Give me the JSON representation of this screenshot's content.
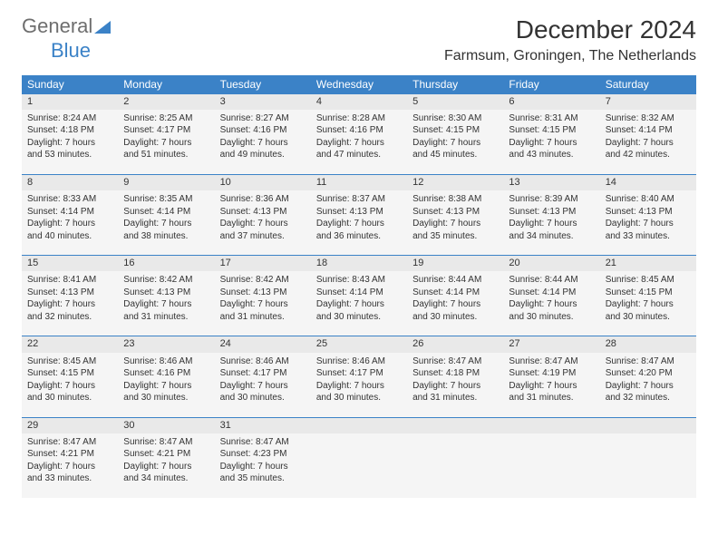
{
  "brand": {
    "word1": "General",
    "word2": "Blue",
    "word1_color": "#6e6e6e",
    "word2_color": "#3b82c7",
    "triangle_color": "#3b82c7"
  },
  "title": "December 2024",
  "location": "Farmsum, Groningen, The Netherlands",
  "weekdays": [
    "Sunday",
    "Monday",
    "Tuesday",
    "Wednesday",
    "Thursday",
    "Friday",
    "Saturday"
  ],
  "header_bg": "#3b82c7",
  "header_fg": "#ffffff",
  "daynum_bg": "#e9e9e9",
  "cell_bg": "#f5f5f5",
  "rule_color": "#3b82c7",
  "text_color": "#333333",
  "font_family": "Arial, Helvetica, sans-serif",
  "title_fontsize": 28,
  "location_fontsize": 16,
  "weekday_fontsize": 12,
  "daynum_fontsize": 11,
  "cell_fontsize": 10,
  "weeks": [
    [
      {
        "n": "1",
        "sunrise": "Sunrise: 8:24 AM",
        "sunset": "Sunset: 4:18 PM",
        "day1": "Daylight: 7 hours",
        "day2": "and 53 minutes."
      },
      {
        "n": "2",
        "sunrise": "Sunrise: 8:25 AM",
        "sunset": "Sunset: 4:17 PM",
        "day1": "Daylight: 7 hours",
        "day2": "and 51 minutes."
      },
      {
        "n": "3",
        "sunrise": "Sunrise: 8:27 AM",
        "sunset": "Sunset: 4:16 PM",
        "day1": "Daylight: 7 hours",
        "day2": "and 49 minutes."
      },
      {
        "n": "4",
        "sunrise": "Sunrise: 8:28 AM",
        "sunset": "Sunset: 4:16 PM",
        "day1": "Daylight: 7 hours",
        "day2": "and 47 minutes."
      },
      {
        "n": "5",
        "sunrise": "Sunrise: 8:30 AM",
        "sunset": "Sunset: 4:15 PM",
        "day1": "Daylight: 7 hours",
        "day2": "and 45 minutes."
      },
      {
        "n": "6",
        "sunrise": "Sunrise: 8:31 AM",
        "sunset": "Sunset: 4:15 PM",
        "day1": "Daylight: 7 hours",
        "day2": "and 43 minutes."
      },
      {
        "n": "7",
        "sunrise": "Sunrise: 8:32 AM",
        "sunset": "Sunset: 4:14 PM",
        "day1": "Daylight: 7 hours",
        "day2": "and 42 minutes."
      }
    ],
    [
      {
        "n": "8",
        "sunrise": "Sunrise: 8:33 AM",
        "sunset": "Sunset: 4:14 PM",
        "day1": "Daylight: 7 hours",
        "day2": "and 40 minutes."
      },
      {
        "n": "9",
        "sunrise": "Sunrise: 8:35 AM",
        "sunset": "Sunset: 4:14 PM",
        "day1": "Daylight: 7 hours",
        "day2": "and 38 minutes."
      },
      {
        "n": "10",
        "sunrise": "Sunrise: 8:36 AM",
        "sunset": "Sunset: 4:13 PM",
        "day1": "Daylight: 7 hours",
        "day2": "and 37 minutes."
      },
      {
        "n": "11",
        "sunrise": "Sunrise: 8:37 AM",
        "sunset": "Sunset: 4:13 PM",
        "day1": "Daylight: 7 hours",
        "day2": "and 36 minutes."
      },
      {
        "n": "12",
        "sunrise": "Sunrise: 8:38 AM",
        "sunset": "Sunset: 4:13 PM",
        "day1": "Daylight: 7 hours",
        "day2": "and 35 minutes."
      },
      {
        "n": "13",
        "sunrise": "Sunrise: 8:39 AM",
        "sunset": "Sunset: 4:13 PM",
        "day1": "Daylight: 7 hours",
        "day2": "and 34 minutes."
      },
      {
        "n": "14",
        "sunrise": "Sunrise: 8:40 AM",
        "sunset": "Sunset: 4:13 PM",
        "day1": "Daylight: 7 hours",
        "day2": "and 33 minutes."
      }
    ],
    [
      {
        "n": "15",
        "sunrise": "Sunrise: 8:41 AM",
        "sunset": "Sunset: 4:13 PM",
        "day1": "Daylight: 7 hours",
        "day2": "and 32 minutes."
      },
      {
        "n": "16",
        "sunrise": "Sunrise: 8:42 AM",
        "sunset": "Sunset: 4:13 PM",
        "day1": "Daylight: 7 hours",
        "day2": "and 31 minutes."
      },
      {
        "n": "17",
        "sunrise": "Sunrise: 8:42 AM",
        "sunset": "Sunset: 4:13 PM",
        "day1": "Daylight: 7 hours",
        "day2": "and 31 minutes."
      },
      {
        "n": "18",
        "sunrise": "Sunrise: 8:43 AM",
        "sunset": "Sunset: 4:14 PM",
        "day1": "Daylight: 7 hours",
        "day2": "and 30 minutes."
      },
      {
        "n": "19",
        "sunrise": "Sunrise: 8:44 AM",
        "sunset": "Sunset: 4:14 PM",
        "day1": "Daylight: 7 hours",
        "day2": "and 30 minutes."
      },
      {
        "n": "20",
        "sunrise": "Sunrise: 8:44 AM",
        "sunset": "Sunset: 4:14 PM",
        "day1": "Daylight: 7 hours",
        "day2": "and 30 minutes."
      },
      {
        "n": "21",
        "sunrise": "Sunrise: 8:45 AM",
        "sunset": "Sunset: 4:15 PM",
        "day1": "Daylight: 7 hours",
        "day2": "and 30 minutes."
      }
    ],
    [
      {
        "n": "22",
        "sunrise": "Sunrise: 8:45 AM",
        "sunset": "Sunset: 4:15 PM",
        "day1": "Daylight: 7 hours",
        "day2": "and 30 minutes."
      },
      {
        "n": "23",
        "sunrise": "Sunrise: 8:46 AM",
        "sunset": "Sunset: 4:16 PM",
        "day1": "Daylight: 7 hours",
        "day2": "and 30 minutes."
      },
      {
        "n": "24",
        "sunrise": "Sunrise: 8:46 AM",
        "sunset": "Sunset: 4:17 PM",
        "day1": "Daylight: 7 hours",
        "day2": "and 30 minutes."
      },
      {
        "n": "25",
        "sunrise": "Sunrise: 8:46 AM",
        "sunset": "Sunset: 4:17 PM",
        "day1": "Daylight: 7 hours",
        "day2": "and 30 minutes."
      },
      {
        "n": "26",
        "sunrise": "Sunrise: 8:47 AM",
        "sunset": "Sunset: 4:18 PM",
        "day1": "Daylight: 7 hours",
        "day2": "and 31 minutes."
      },
      {
        "n": "27",
        "sunrise": "Sunrise: 8:47 AM",
        "sunset": "Sunset: 4:19 PM",
        "day1": "Daylight: 7 hours",
        "day2": "and 31 minutes."
      },
      {
        "n": "28",
        "sunrise": "Sunrise: 8:47 AM",
        "sunset": "Sunset: 4:20 PM",
        "day1": "Daylight: 7 hours",
        "day2": "and 32 minutes."
      }
    ],
    [
      {
        "n": "29",
        "sunrise": "Sunrise: 8:47 AM",
        "sunset": "Sunset: 4:21 PM",
        "day1": "Daylight: 7 hours",
        "day2": "and 33 minutes."
      },
      {
        "n": "30",
        "sunrise": "Sunrise: 8:47 AM",
        "sunset": "Sunset: 4:21 PM",
        "day1": "Daylight: 7 hours",
        "day2": "and 34 minutes."
      },
      {
        "n": "31",
        "sunrise": "Sunrise: 8:47 AM",
        "sunset": "Sunset: 4:23 PM",
        "day1": "Daylight: 7 hours",
        "day2": "and 35 minutes."
      },
      null,
      null,
      null,
      null
    ]
  ]
}
